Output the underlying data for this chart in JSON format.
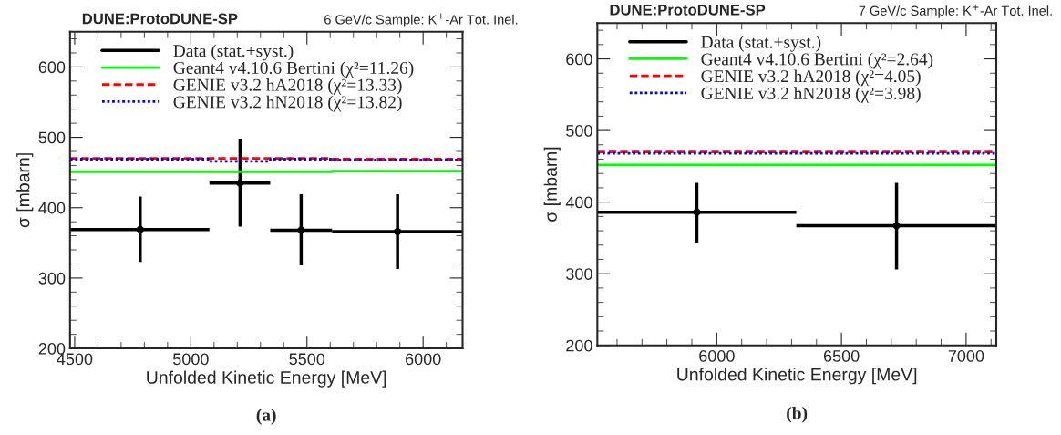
{
  "chart_data": [
    {
      "type": "scatter",
      "title": "DUNE:ProtoDUNE-SP",
      "subtitle": "6 GeV/c Sample: K$^{+}$-Ar Tot. Inel.",
      "xlabel": "Unfolded Kinetic Energy [MeV]",
      "ylabel": "σ [mbarn]",
      "annotations": [
        "(a)"
      ],
      "xlim": [
        4480,
        6170
      ],
      "ylim": [
        200,
        650
      ],
      "xticks": [
        4500,
        5000,
        5500,
        6000
      ],
      "yticks": [
        200,
        300,
        400,
        500,
        600
      ],
      "grid": false,
      "legend": "top left",
      "series": [
        {
          "name": "Data (stat.+syst.)",
          "marker": "circle",
          "color": "#000000",
          "x": [
            4782,
            5212,
            5475,
            5890
          ],
          "values": [
            369,
            435,
            368,
            366
          ],
          "errors": [
            [
              323,
              416
            ],
            [
              373,
              498
            ],
            [
              318,
              419
            ],
            [
              313,
              419
            ]
          ],
          "xerrors": [
            [
              4480,
              5080
            ],
            [
              5080,
              5342
            ],
            [
              5342,
              5608
            ],
            [
              5608,
              6170
            ]
          ]
        },
        {
          "name": "Geant4 v4.10.6 Bertini (χ²=11.26)",
          "type": "step",
          "color": "#00ff00",
          "line_style": "solid",
          "x": [
            4480,
            5080,
            5342,
            5608,
            6170
          ],
          "values": [
            451,
            451,
            451,
            452,
            452
          ]
        },
        {
          "name": "GENIE v3.2 hA2018 (χ²=13.33)",
          "type": "step",
          "color": "#ff0000",
          "line_style": "dashed",
          "x": [
            4480,
            5080,
            5342,
            5608,
            6170
          ],
          "values": [
            470,
            470,
            470,
            469,
            469
          ]
        },
        {
          "name": "GENIE v3.2 hN2018 (χ²=13.82)",
          "type": "step",
          "color": "#0000ff",
          "line_style": "dotted",
          "x": [
            4480,
            5080,
            5342,
            5608,
            6170
          ],
          "values": [
            469,
            466,
            469,
            468,
            468
          ]
        }
      ]
    },
    {
      "type": "scatter",
      "title": "DUNE:ProtoDUNE-SP",
      "subtitle": "7 GeV/c Sample: K$^{+}$-Ar Tot. Inel.",
      "xlabel": "Unfolded Kinetic Energy [MeV]",
      "ylabel": "σ [mbarn]",
      "annotations": [
        "(b)"
      ],
      "xlim": [
        5521,
        7121
      ],
      "ylim": [
        200,
        650
      ],
      "xticks": [
        6000,
        6500,
        7000
      ],
      "yticks": [
        200,
        300,
        400,
        500,
        600
      ],
      "grid": false,
      "legend": "top left",
      "series": [
        {
          "name": "Data (stat.+syst.)",
          "marker": "circle",
          "color": "#000000",
          "x": [
            5920,
            6721
          ],
          "values": [
            386,
            367
          ],
          "errors": [
            [
              343,
              427
            ],
            [
              306,
              427
            ]
          ],
          "xerrors": [
            [
              5521,
              6319
            ],
            [
              6319,
              7121
            ]
          ]
        },
        {
          "name": "Geant4 v4.10.6 Bertini (χ²=2.64)",
          "type": "step",
          "color": "#00ff00",
          "line_style": "solid",
          "x": [
            5521,
            6319,
            7121
          ],
          "values": [
            452,
            452,
            452
          ]
        },
        {
          "name": "GENIE v3.2 hA2018 (χ²=4.05)",
          "type": "step",
          "color": "#ff0000",
          "line_style": "dashed",
          "x": [
            5521,
            6319,
            7121
          ],
          "values": [
            470,
            470,
            470
          ]
        },
        {
          "name": "GENIE v3.2 hN2018 (χ²=3.98)",
          "type": "step",
          "color": "#0000ff",
          "line_style": "dotted",
          "x": [
            5521,
            6319,
            7121
          ],
          "values": [
            468,
            468,
            468
          ]
        }
      ]
    }
  ]
}
